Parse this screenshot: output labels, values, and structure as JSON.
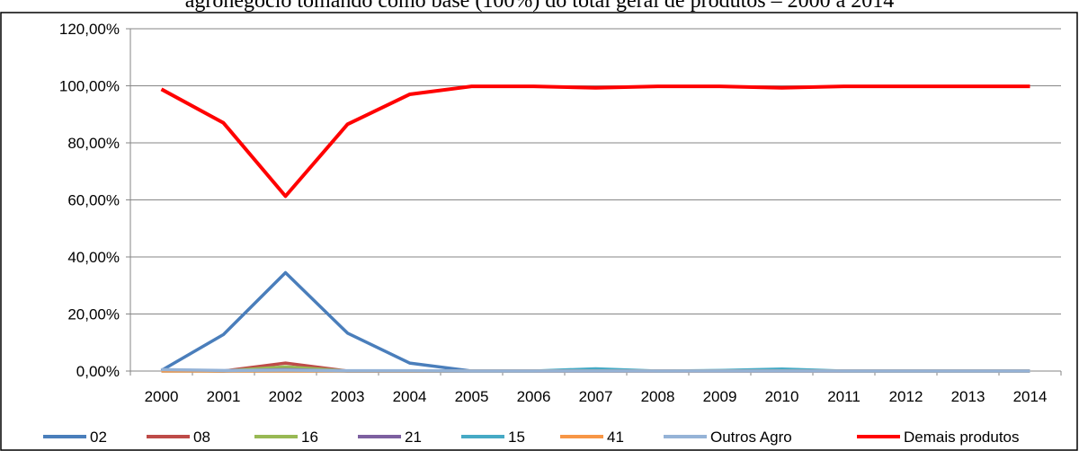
{
  "chart_data": {
    "type": "line",
    "title": "agronegócio tomando como base (100%) do total geral de produtos – 2000 a 2014",
    "categories": [
      "2000",
      "2001",
      "2002",
      "2003",
      "2004",
      "2005",
      "2006",
      "2007",
      "2008",
      "2009",
      "2010",
      "2011",
      "2012",
      "2013",
      "2014"
    ],
    "ylim": [
      0,
      120
    ],
    "yticks": [
      {
        "value": 0,
        "label": "0,00%"
      },
      {
        "value": 20,
        "label": "20,00%"
      },
      {
        "value": 40,
        "label": "40,00%"
      },
      {
        "value": 60,
        "label": "60,00%"
      },
      {
        "value": 80,
        "label": "80,00%"
      },
      {
        "value": 100,
        "label": "100,00%"
      },
      {
        "value": 120,
        "label": "120,00%"
      }
    ],
    "grid": true,
    "legend": "bottom",
    "series": [
      {
        "name": "02",
        "color": "#4a7ebb",
        "values": [
          0.2,
          12.8,
          34.5,
          13.3,
          2.8,
          0,
          0,
          0.2,
          0,
          0.1,
          0.2,
          0,
          0,
          0,
          0
        ]
      },
      {
        "name": "08",
        "color": "#be4b48",
        "values": [
          0.3,
          0,
          2.8,
          0,
          0,
          0,
          0,
          0,
          0,
          0,
          0,
          0,
          0,
          0,
          0
        ]
      },
      {
        "name": "16",
        "color": "#98b954",
        "values": [
          0.2,
          0,
          1.5,
          0,
          0,
          0,
          0,
          0,
          0,
          0,
          0,
          0,
          0,
          0,
          0
        ]
      },
      {
        "name": "21",
        "color": "#7d60a0",
        "values": [
          0.3,
          0,
          0.5,
          0,
          0,
          0,
          0,
          0,
          0,
          0,
          0,
          0,
          0,
          0,
          0
        ]
      },
      {
        "name": "15",
        "color": "#46aac5",
        "values": [
          0,
          0,
          0,
          0,
          0,
          0,
          0,
          0.8,
          0,
          0.2,
          0.7,
          0,
          0,
          0,
          0
        ]
      },
      {
        "name": "41",
        "color": "#f79646",
        "values": [
          0,
          0,
          0,
          0,
          0,
          0,
          0,
          0,
          0,
          0,
          0,
          0,
          0,
          0,
          0
        ]
      },
      {
        "name": "Outros Agro",
        "color": "#95b3d7",
        "values": [
          0.5,
          0.2,
          0.3,
          0.1,
          0.1,
          0,
          0,
          0,
          0,
          0,
          0,
          0,
          0,
          0,
          0
        ]
      },
      {
        "name": "Demais produtos",
        "color": "#ff0000",
        "values": [
          98.8,
          87,
          61.3,
          86.5,
          97,
          99.8,
          99.8,
          99.3,
          99.8,
          99.8,
          99.3,
          99.8,
          99.8,
          99.8,
          99.8
        ]
      }
    ]
  }
}
